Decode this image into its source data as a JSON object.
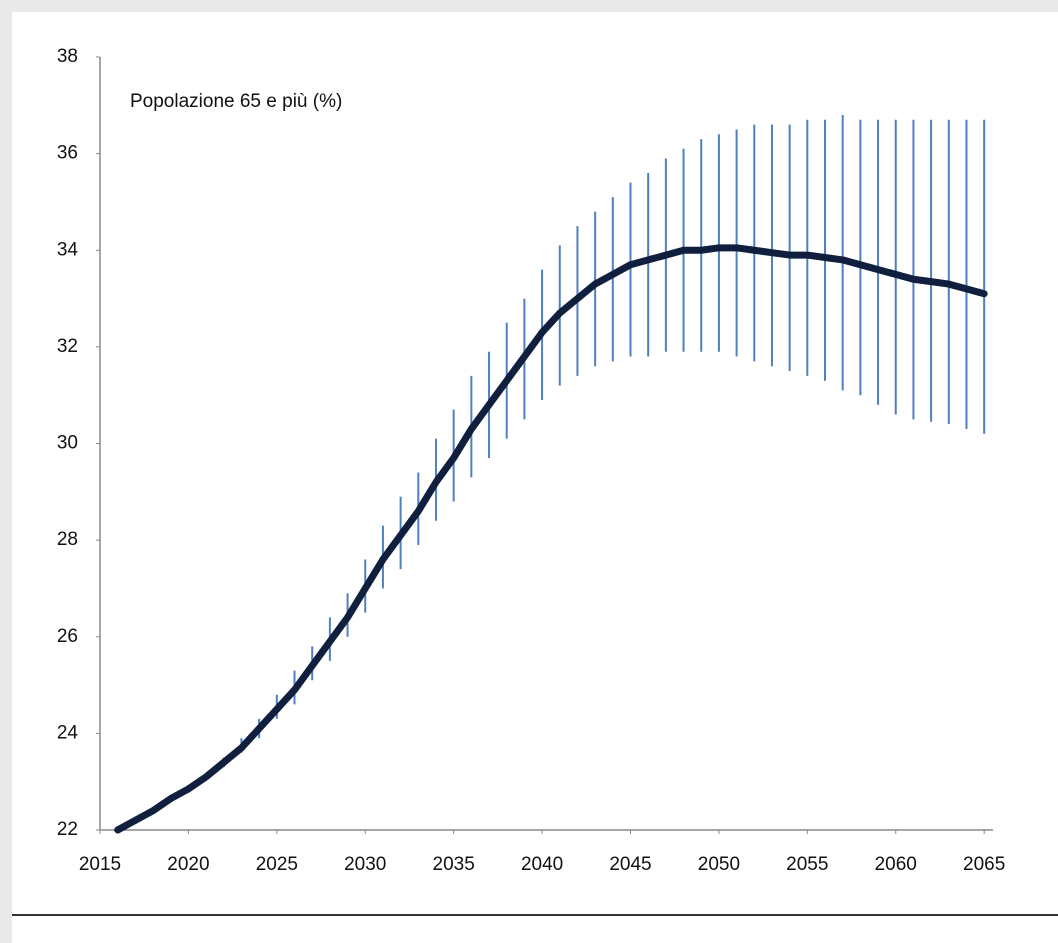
{
  "chart_data": {
    "type": "line",
    "title": "Popolazione 65 e più (%)",
    "x": [
      2016,
      2017,
      2018,
      2019,
      2020,
      2021,
      2022,
      2023,
      2024,
      2025,
      2026,
      2027,
      2028,
      2029,
      2030,
      2031,
      2032,
      2033,
      2034,
      2035,
      2036,
      2037,
      2038,
      2039,
      2040,
      2041,
      2042,
      2043,
      2044,
      2045,
      2046,
      2047,
      2048,
      2049,
      2050,
      2051,
      2052,
      2053,
      2054,
      2055,
      2056,
      2057,
      2058,
      2059,
      2060,
      2061,
      2062,
      2063,
      2064,
      2065
    ],
    "values": [
      22.0,
      22.2,
      22.4,
      22.65,
      22.85,
      23.1,
      23.4,
      23.7,
      24.1,
      24.5,
      24.9,
      25.4,
      25.9,
      26.4,
      27.0,
      27.6,
      28.1,
      28.6,
      29.2,
      29.7,
      30.3,
      30.8,
      31.3,
      31.8,
      32.3,
      32.7,
      33.0,
      33.3,
      33.5,
      33.7,
      33.8,
      33.9,
      34.0,
      34.0,
      34.05,
      34.05,
      34.0,
      33.95,
      33.9,
      33.9,
      33.85,
      33.8,
      33.7,
      33.6,
      33.5,
      33.4,
      33.35,
      33.3,
      33.2,
      33.1
    ],
    "high": [
      null,
      null,
      null,
      null,
      null,
      null,
      23.5,
      23.9,
      24.3,
      24.8,
      25.3,
      25.8,
      26.4,
      26.9,
      27.6,
      28.3,
      28.9,
      29.4,
      30.1,
      30.7,
      31.4,
      31.9,
      32.5,
      33.0,
      33.6,
      34.1,
      34.5,
      34.8,
      35.1,
      35.4,
      35.6,
      35.9,
      36.1,
      36.3,
      36.4,
      36.5,
      36.6,
      36.6,
      36.6,
      36.7,
      36.7,
      36.8,
      36.7,
      36.7,
      36.7,
      36.7,
      36.7,
      36.7,
      36.7,
      36.7
    ],
    "low": [
      null,
      null,
      null,
      null,
      null,
      null,
      23.3,
      23.6,
      23.9,
      24.3,
      24.6,
      25.1,
      25.5,
      26.0,
      26.5,
      27.0,
      27.4,
      27.9,
      28.4,
      28.8,
      29.3,
      29.7,
      30.1,
      30.5,
      30.9,
      31.2,
      31.4,
      31.6,
      31.7,
      31.8,
      31.8,
      31.9,
      31.9,
      31.9,
      31.9,
      31.8,
      31.7,
      31.6,
      31.5,
      31.4,
      31.3,
      31.1,
      31.0,
      30.8,
      30.6,
      30.5,
      30.45,
      30.4,
      30.3,
      30.2
    ],
    "color": "#0f1f3d",
    "error_color": "#4f7fc0",
    "xlim": [
      2015,
      2065.5
    ],
    "ylim": [
      22,
      38
    ],
    "xticks": [
      2015,
      2020,
      2025,
      2030,
      2035,
      2040,
      2045,
      2050,
      2055,
      2060,
      2065
    ],
    "yticks": [
      22,
      24,
      26,
      28,
      30,
      32,
      34,
      36,
      38
    ],
    "grid": false
  }
}
